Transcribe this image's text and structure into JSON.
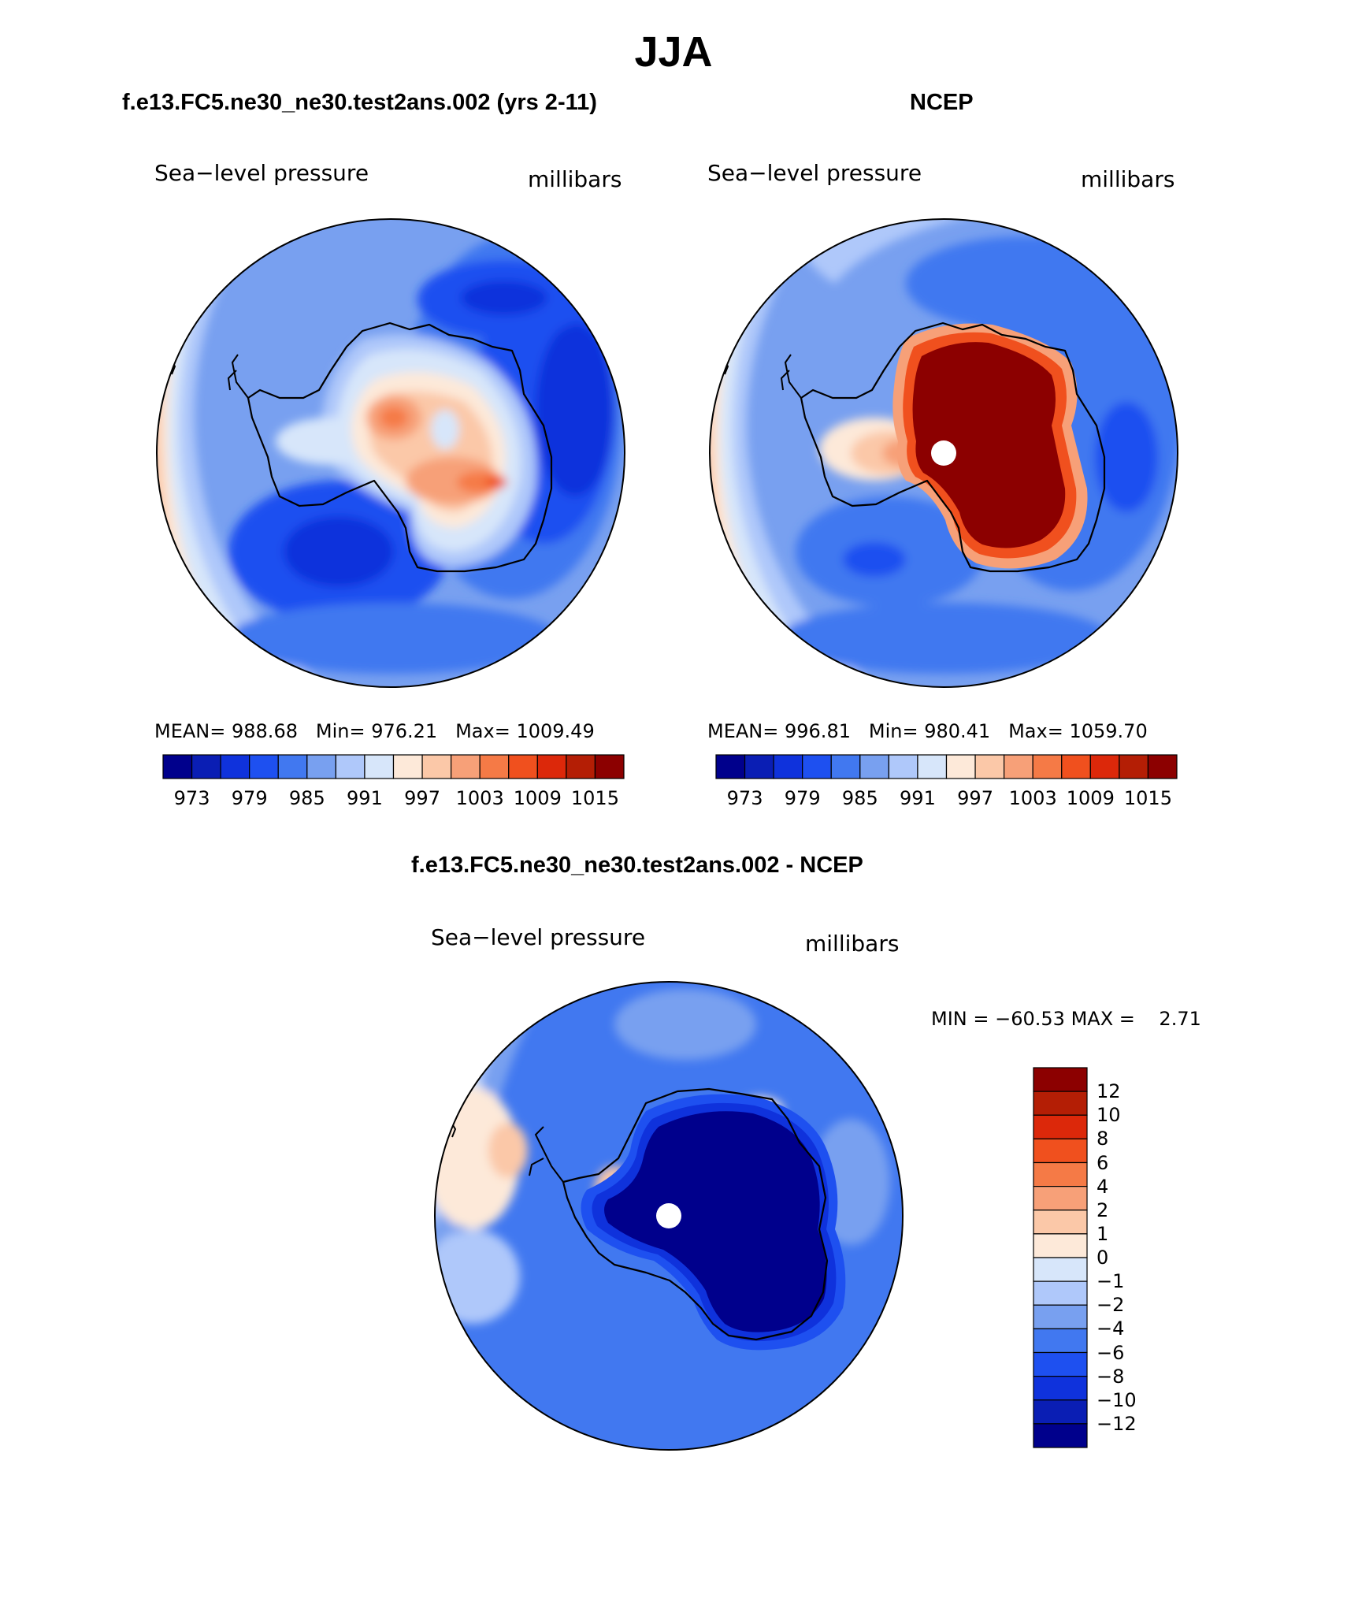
{
  "figure": {
    "title": "JJA",
    "colors": {
      "pressure_scale": [
        "#00008c",
        "#0a1eb4",
        "#0f32dc",
        "#1e50f0",
        "#4178f0",
        "#78a0f0",
        "#afc8fa",
        "#d7e6fa",
        "#fde9d9",
        "#fbc8a8",
        "#f7a078",
        "#f57a46",
        "#f0501e",
        "#dc280a",
        "#b41e05",
        "#8c0000"
      ],
      "diff_scale": [
        "#00008c",
        "#0a1eb4",
        "#0f32dc",
        "#1e50f0",
        "#4178f0",
        "#78a0f0",
        "#afc8fa",
        "#d7e6fa",
        "#fde9d9",
        "#fbc8a8",
        "#f7a078",
        "#f57a46",
        "#f0501e",
        "#dc280a",
        "#b41e05",
        "#8c0000"
      ],
      "coastline": "#000000",
      "pole_mask": "#ffffff"
    }
  },
  "panels": {
    "model": {
      "header": "f.e13.FC5.ne30_ne30.test2ans.002 (yrs 2-11)",
      "variable": "Sea−level pressure",
      "units": "millibars",
      "stats": {
        "mean_label": "MEAN=",
        "mean": "988.68",
        "min_label": "Min=",
        "min": "976.21",
        "max_label": "Max=",
        "max": "1009.49"
      },
      "colorbar_ticks": [
        "973",
        "979",
        "985",
        "991",
        "997",
        "1003",
        "1009",
        "1015"
      ]
    },
    "obs": {
      "header": "NCEP",
      "variable": "Sea−level pressure",
      "units": "millibars",
      "stats": {
        "mean_label": "MEAN=",
        "mean": "996.81",
        "min_label": "Min=",
        "min": "980.41",
        "max_label": "Max=",
        "max": "1059.70"
      },
      "colorbar_ticks": [
        "973",
        "979",
        "985",
        "991",
        "997",
        "1003",
        "1009",
        "1015"
      ]
    },
    "diff": {
      "header": "f.e13.FC5.ne30_ne30.test2ans.002 - NCEP",
      "variable": "Sea−level pressure",
      "units": "millibars",
      "stats": {
        "min_label": "MIN =",
        "min": "−60.53",
        "max_label": "MAX =",
        "max": "2.71"
      },
      "colorbar_ticks": [
        "12",
        "10",
        "8",
        "6",
        "4",
        "2",
        "1",
        "0",
        "−1",
        "−2",
        "−4",
        "−6",
        "−8",
        "−10",
        "−12"
      ]
    }
  }
}
